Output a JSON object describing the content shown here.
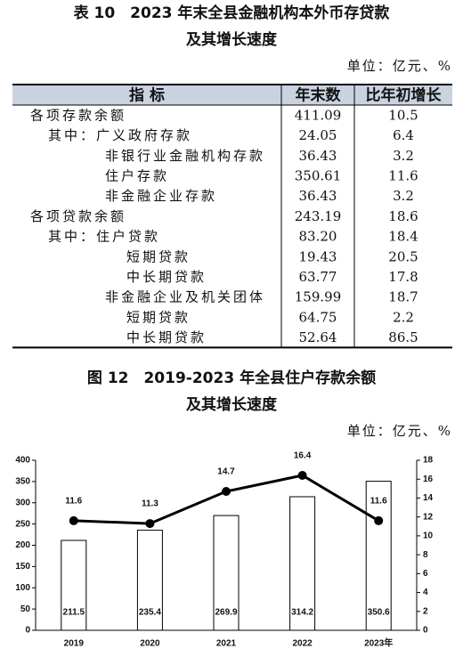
{
  "header": {
    "title_line1": "表 10　2023 年末全县金融机构本外币存贷款",
    "title_line2": "及其增长速度",
    "unit": "单位：亿元、%"
  },
  "table": {
    "columns": [
      "指 标",
      "年末数",
      "比年初增长"
    ],
    "rows": [
      [
        "各项存款余额",
        "411.09",
        "10.5"
      ],
      [
        "其中：广义政府存款",
        "24.05",
        "6.4"
      ],
      [
        "非银行业金融机构存款",
        "36.43",
        "3.2"
      ],
      [
        "住户存款",
        "350.61",
        "11.6"
      ],
      [
        "非金融企业存款",
        "36.43",
        "3.2"
      ],
      [
        "各项贷款余额",
        "243.19",
        "18.6"
      ],
      [
        "其中：住户贷款",
        "83.20",
        "18.4"
      ],
      [
        "短期贷款",
        "19.43",
        "20.5"
      ],
      [
        "中长期贷款",
        "63.77",
        "17.8"
      ],
      [
        "非金融企业及机关团体",
        "159.99",
        "18.7"
      ],
      [
        "短期贷款",
        "64.75",
        "2.2"
      ],
      [
        "中长期贷款",
        "52.64",
        "86.5"
      ]
    ]
  },
  "chart_data": {
    "type": "bar",
    "title": "图 12　2019-2023 年全县住户存款余额",
    "subtitle": "及其增长速度",
    "unit": "单位：亿元、%",
    "categories": [
      "2019",
      "2020",
      "2021",
      "2022",
      "2023年"
    ],
    "series": [
      {
        "type": "bar",
        "color": "#ffffff",
        "values": [
          211.5,
          235.4,
          269.9,
          314.2,
          350.6
        ]
      },
      {
        "type": "line",
        "color": "#000000",
        "axis": "y2",
        "values": [
          11.6,
          11.3,
          14.7,
          16.4,
          11.6
        ]
      }
    ],
    "ylim": [
      0,
      400
    ],
    "yticks": [
      0,
      50,
      100,
      150,
      200,
      250,
      300,
      350,
      400
    ],
    "y2lim": [
      0,
      18
    ],
    "y2ticks": [
      0,
      2,
      4,
      6,
      8,
      10,
      12,
      14,
      16,
      18
    ],
    "grid": false
  }
}
